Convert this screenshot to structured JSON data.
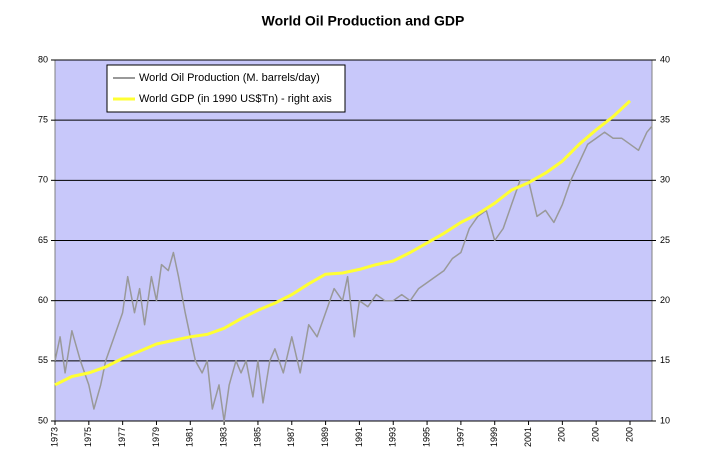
{
  "chart_data": {
    "type": "line",
    "title": "World Oil Production and GDP",
    "xlim": [
      1973,
      2008.3
    ],
    "xticks": [
      1973,
      1975,
      1977,
      1979,
      1981,
      1983,
      1985,
      1987,
      1989,
      1991,
      1993,
      1995,
      1997,
      1999,
      2001,
      {
        "value": 2003,
        "label": "200"
      },
      {
        "value": 2005,
        "label": "200"
      },
      {
        "value": 2007,
        "label": "200"
      }
    ],
    "ylim": [
      50,
      80
    ],
    "yticks": [
      50,
      55,
      60,
      65,
      70,
      75,
      80
    ],
    "y2lim": [
      10,
      40
    ],
    "y2ticks": [
      10,
      15,
      20,
      25,
      30,
      35,
      40
    ],
    "grid": true,
    "legend": "upper left",
    "series": [
      {
        "name": "World Oil Production (M. barrels/day)",
        "color": "#999999",
        "axis": "y",
        "x": [
          1973,
          1973.3,
          1973.6,
          1974,
          1974.5,
          1975,
          1975.3,
          1975.7,
          1976,
          1976.5,
          1977,
          1977.3,
          1977.7,
          1978,
          1978.3,
          1978.7,
          1979,
          1979.3,
          1979.7,
          1980,
          1980.3,
          1980.7,
          1981,
          1981.3,
          1981.7,
          1982,
          1982.3,
          1982.7,
          1983,
          1983.3,
          1983.7,
          1984,
          1984.3,
          1984.7,
          1985,
          1985.3,
          1985.7,
          1986,
          1986.5,
          1987,
          1987.5,
          1988,
          1988.5,
          1989,
          1989.5,
          1990,
          1990.3,
          1990.7,
          1991,
          1991.5,
          1992,
          1992.5,
          1993,
          1993.5,
          1994,
          1994.5,
          1995,
          1995.5,
          1996,
          1996.5,
          1997,
          1997.5,
          1998,
          1998.5,
          1999,
          1999.5,
          2000,
          2000.5,
          2001,
          2001.5,
          2002,
          2002.5,
          2003,
          2003.5,
          2004,
          2004.5,
          2005,
          2005.5,
          2006,
          2006.5,
          2007,
          2007.5,
          2008,
          2008.3
        ],
        "values": [
          55,
          57,
          54,
          57.5,
          55,
          53,
          51,
          53,
          55,
          57,
          59,
          62,
          59,
          61,
          58,
          62,
          60,
          63,
          62.5,
          64,
          62,
          59,
          57,
          55,
          54,
          55,
          51,
          53,
          50,
          53,
          55,
          54,
          55,
          52,
          55,
          51.5,
          55,
          56,
          54,
          57,
          54,
          58,
          57,
          59,
          61,
          60,
          62,
          57,
          60,
          59.5,
          60.5,
          60,
          60,
          60.5,
          60,
          61,
          61.5,
          62,
          62.5,
          63.5,
          64,
          66,
          67,
          67.5,
          65,
          66,
          68,
          70,
          70,
          67,
          67.5,
          66.5,
          68,
          70,
          71.5,
          73,
          73.5,
          74,
          73.5,
          73.5,
          73,
          72.5,
          74,
          74.5
        ]
      },
      {
        "name": "World GDP (in 1990 US$Tn) - right axis",
        "color": "#ffff33",
        "axis": "y2",
        "x": [
          1973,
          1974,
          1975,
          1976,
          1977,
          1978,
          1979,
          1980,
          1981,
          1982,
          1983,
          1984,
          1985,
          1986,
          1987,
          1988,
          1989,
          1990,
          1991,
          1992,
          1993,
          1994,
          1995,
          1996,
          1997,
          1998,
          1999,
          2000,
          2001,
          2002,
          2003,
          2004,
          2005,
          2006,
          2007
        ],
        "values": [
          13,
          13.7,
          14,
          14.5,
          15.2,
          15.8,
          16.4,
          16.7,
          17,
          17.2,
          17.7,
          18.5,
          19.2,
          19.8,
          20.5,
          21.4,
          22.2,
          22.3,
          22.6,
          23,
          23.3,
          24,
          24.8,
          25.6,
          26.5,
          27.2,
          28.1,
          29.2,
          29.8,
          30.6,
          31.6,
          33,
          34.2,
          35.3,
          36.6
        ]
      }
    ]
  }
}
